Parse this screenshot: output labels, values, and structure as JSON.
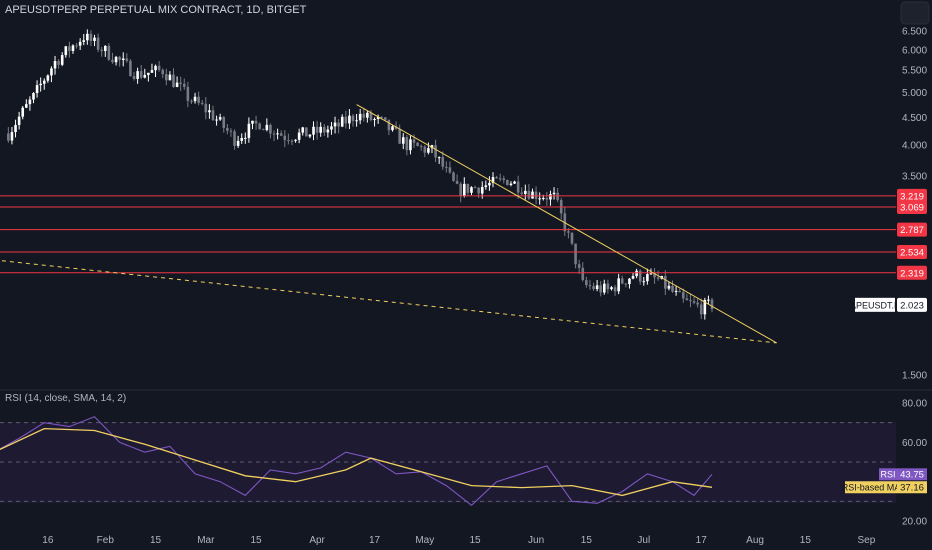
{
  "header": {
    "title": "APEUSDTPERP PERPETUAL MIX CONTRACT, 1D, BITGET"
  },
  "colors": {
    "background": "#131722",
    "candle_up": "#ffffff",
    "candle_down": "#787b86",
    "trendline": "#f0d060",
    "horizontal_line": "#f23645",
    "rsi_line": "#7e57c2",
    "rsi_ma": "#f0d060",
    "rsi_band": "#2a2342"
  },
  "chart_data": [
    {
      "type": "candlestick",
      "symbol": "APEUSDT.P",
      "scale": "log",
      "y_ticks": [
        "6.500",
        "6.000",
        "5.500",
        "5.000",
        "4.500",
        "4.000",
        "3.500",
        "1.500"
      ],
      "x_ticks": [
        "16",
        "Feb",
        "15",
        "Mar",
        "15",
        "Apr",
        "17",
        "May",
        "15",
        "Jun",
        "15",
        "Jul",
        "17",
        "Aug",
        "15",
        "Sep"
      ],
      "price_levels": [
        {
          "label": "3.219",
          "value": 3.219
        },
        {
          "label": "3.069",
          "value": 3.069
        },
        {
          "label": "2.787",
          "value": 2.787
        },
        {
          "label": "2.534",
          "value": 2.534
        },
        {
          "label": "2.319",
          "value": 2.319
        }
      ],
      "last_price": {
        "symbol": "APEUSDT.P",
        "label": "2.023",
        "value": 2.023
      },
      "trendlines": [
        {
          "style": "solid",
          "from": {
            "date": "2022-04-12",
            "price": 4.75
          },
          "to": {
            "date": "2022-08-07",
            "price": 1.72
          }
        },
        {
          "style": "dashed",
          "from": {
            "date": "2022-01-01",
            "price": 2.45
          },
          "to": {
            "date": "2022-08-07",
            "price": 1.72
          }
        }
      ],
      "candles_sampled_close": [
        {
          "date": "2022-01-05",
          "close": 4.2
        },
        {
          "date": "2022-01-12",
          "close": 4.9
        },
        {
          "date": "2022-01-18",
          "close": 5.7
        },
        {
          "date": "2022-01-26",
          "close": 6.35
        },
        {
          "date": "2022-02-02",
          "close": 5.9
        },
        {
          "date": "2022-02-10",
          "close": 5.4
        },
        {
          "date": "2022-02-17",
          "close": 5.5
        },
        {
          "date": "2022-02-24",
          "close": 4.9
        },
        {
          "date": "2022-03-02",
          "close": 4.6
        },
        {
          "date": "2022-03-09",
          "close": 4.1
        },
        {
          "date": "2022-03-16",
          "close": 4.4
        },
        {
          "date": "2022-03-23",
          "close": 4.15
        },
        {
          "date": "2022-03-30",
          "close": 4.2
        },
        {
          "date": "2022-04-06",
          "close": 4.3
        },
        {
          "date": "2022-04-12",
          "close": 4.55
        },
        {
          "date": "2022-04-19",
          "close": 4.4
        },
        {
          "date": "2022-04-26",
          "close": 4.0
        },
        {
          "date": "2022-05-03",
          "close": 3.9
        },
        {
          "date": "2022-05-10",
          "close": 3.3
        },
        {
          "date": "2022-05-17",
          "close": 3.35
        },
        {
          "date": "2022-05-24",
          "close": 3.45
        },
        {
          "date": "2022-05-31",
          "close": 3.25
        },
        {
          "date": "2022-06-06",
          "close": 3.2
        },
        {
          "date": "2022-06-10",
          "close": 2.7
        },
        {
          "date": "2022-06-14",
          "close": 2.2
        },
        {
          "date": "2022-06-21",
          "close": 2.15
        },
        {
          "date": "2022-06-28",
          "close": 2.3
        },
        {
          "date": "2022-07-05",
          "close": 2.25
        },
        {
          "date": "2022-07-12",
          "close": 2.05
        },
        {
          "date": "2022-07-17",
          "close": 2.0
        },
        {
          "date": "2022-07-20",
          "close": 2.023
        }
      ]
    },
    {
      "type": "line",
      "title": "RSI (14, close, SMA, 14, 2)",
      "y_ticks": [
        "80.00",
        "60.00",
        "20.00"
      ],
      "bands": [
        70,
        50,
        30
      ],
      "ylim": [
        20,
        80
      ],
      "rsi": {
        "label": "RSI",
        "value_label": "43.75"
      },
      "rsi_ma": {
        "label": "RSI-based MA",
        "value_label": "37.16"
      },
      "series": [
        {
          "name": "RSI",
          "points": [
            {
              "date": "2022-01-01",
              "value": 55
            },
            {
              "date": "2022-01-08",
              "value": 62
            },
            {
              "date": "2022-01-15",
              "value": 70
            },
            {
              "date": "2022-01-22",
              "value": 68
            },
            {
              "date": "2022-01-29",
              "value": 73
            },
            {
              "date": "2022-02-05",
              "value": 60
            },
            {
              "date": "2022-02-12",
              "value": 55
            },
            {
              "date": "2022-02-19",
              "value": 58
            },
            {
              "date": "2022-02-26",
              "value": 44
            },
            {
              "date": "2022-03-05",
              "value": 40
            },
            {
              "date": "2022-03-12",
              "value": 33
            },
            {
              "date": "2022-03-19",
              "value": 46
            },
            {
              "date": "2022-03-26",
              "value": 44
            },
            {
              "date": "2022-04-02",
              "value": 47
            },
            {
              "date": "2022-04-09",
              "value": 55
            },
            {
              "date": "2022-04-16",
              "value": 52
            },
            {
              "date": "2022-04-23",
              "value": 44
            },
            {
              "date": "2022-04-30",
              "value": 45
            },
            {
              "date": "2022-05-07",
              "value": 38
            },
            {
              "date": "2022-05-14",
              "value": 28
            },
            {
              "date": "2022-05-21",
              "value": 40
            },
            {
              "date": "2022-05-28",
              "value": 44
            },
            {
              "date": "2022-06-04",
              "value": 48
            },
            {
              "date": "2022-06-11",
              "value": 30
            },
            {
              "date": "2022-06-18",
              "value": 29
            },
            {
              "date": "2022-06-25",
              "value": 35
            },
            {
              "date": "2022-07-02",
              "value": 44
            },
            {
              "date": "2022-07-09",
              "value": 40
            },
            {
              "date": "2022-07-15",
              "value": 33
            },
            {
              "date": "2022-07-20",
              "value": 43.75
            }
          ]
        },
        {
          "name": "RSI-based MA",
          "points": [
            {
              "date": "2022-01-01",
              "value": 55
            },
            {
              "date": "2022-01-15",
              "value": 67
            },
            {
              "date": "2022-01-29",
              "value": 66
            },
            {
              "date": "2022-02-12",
              "value": 59
            },
            {
              "date": "2022-02-26",
              "value": 51
            },
            {
              "date": "2022-03-12",
              "value": 43
            },
            {
              "date": "2022-03-26",
              "value": 40
            },
            {
              "date": "2022-04-09",
              "value": 46
            },
            {
              "date": "2022-04-16",
              "value": 52
            },
            {
              "date": "2022-04-30",
              "value": 45
            },
            {
              "date": "2022-05-14",
              "value": 38
            },
            {
              "date": "2022-05-28",
              "value": 37
            },
            {
              "date": "2022-06-11",
              "value": 38
            },
            {
              "date": "2022-06-25",
              "value": 33
            },
            {
              "date": "2022-07-09",
              "value": 40
            },
            {
              "date": "2022-07-20",
              "value": 37.16
            }
          ]
        }
      ]
    }
  ]
}
